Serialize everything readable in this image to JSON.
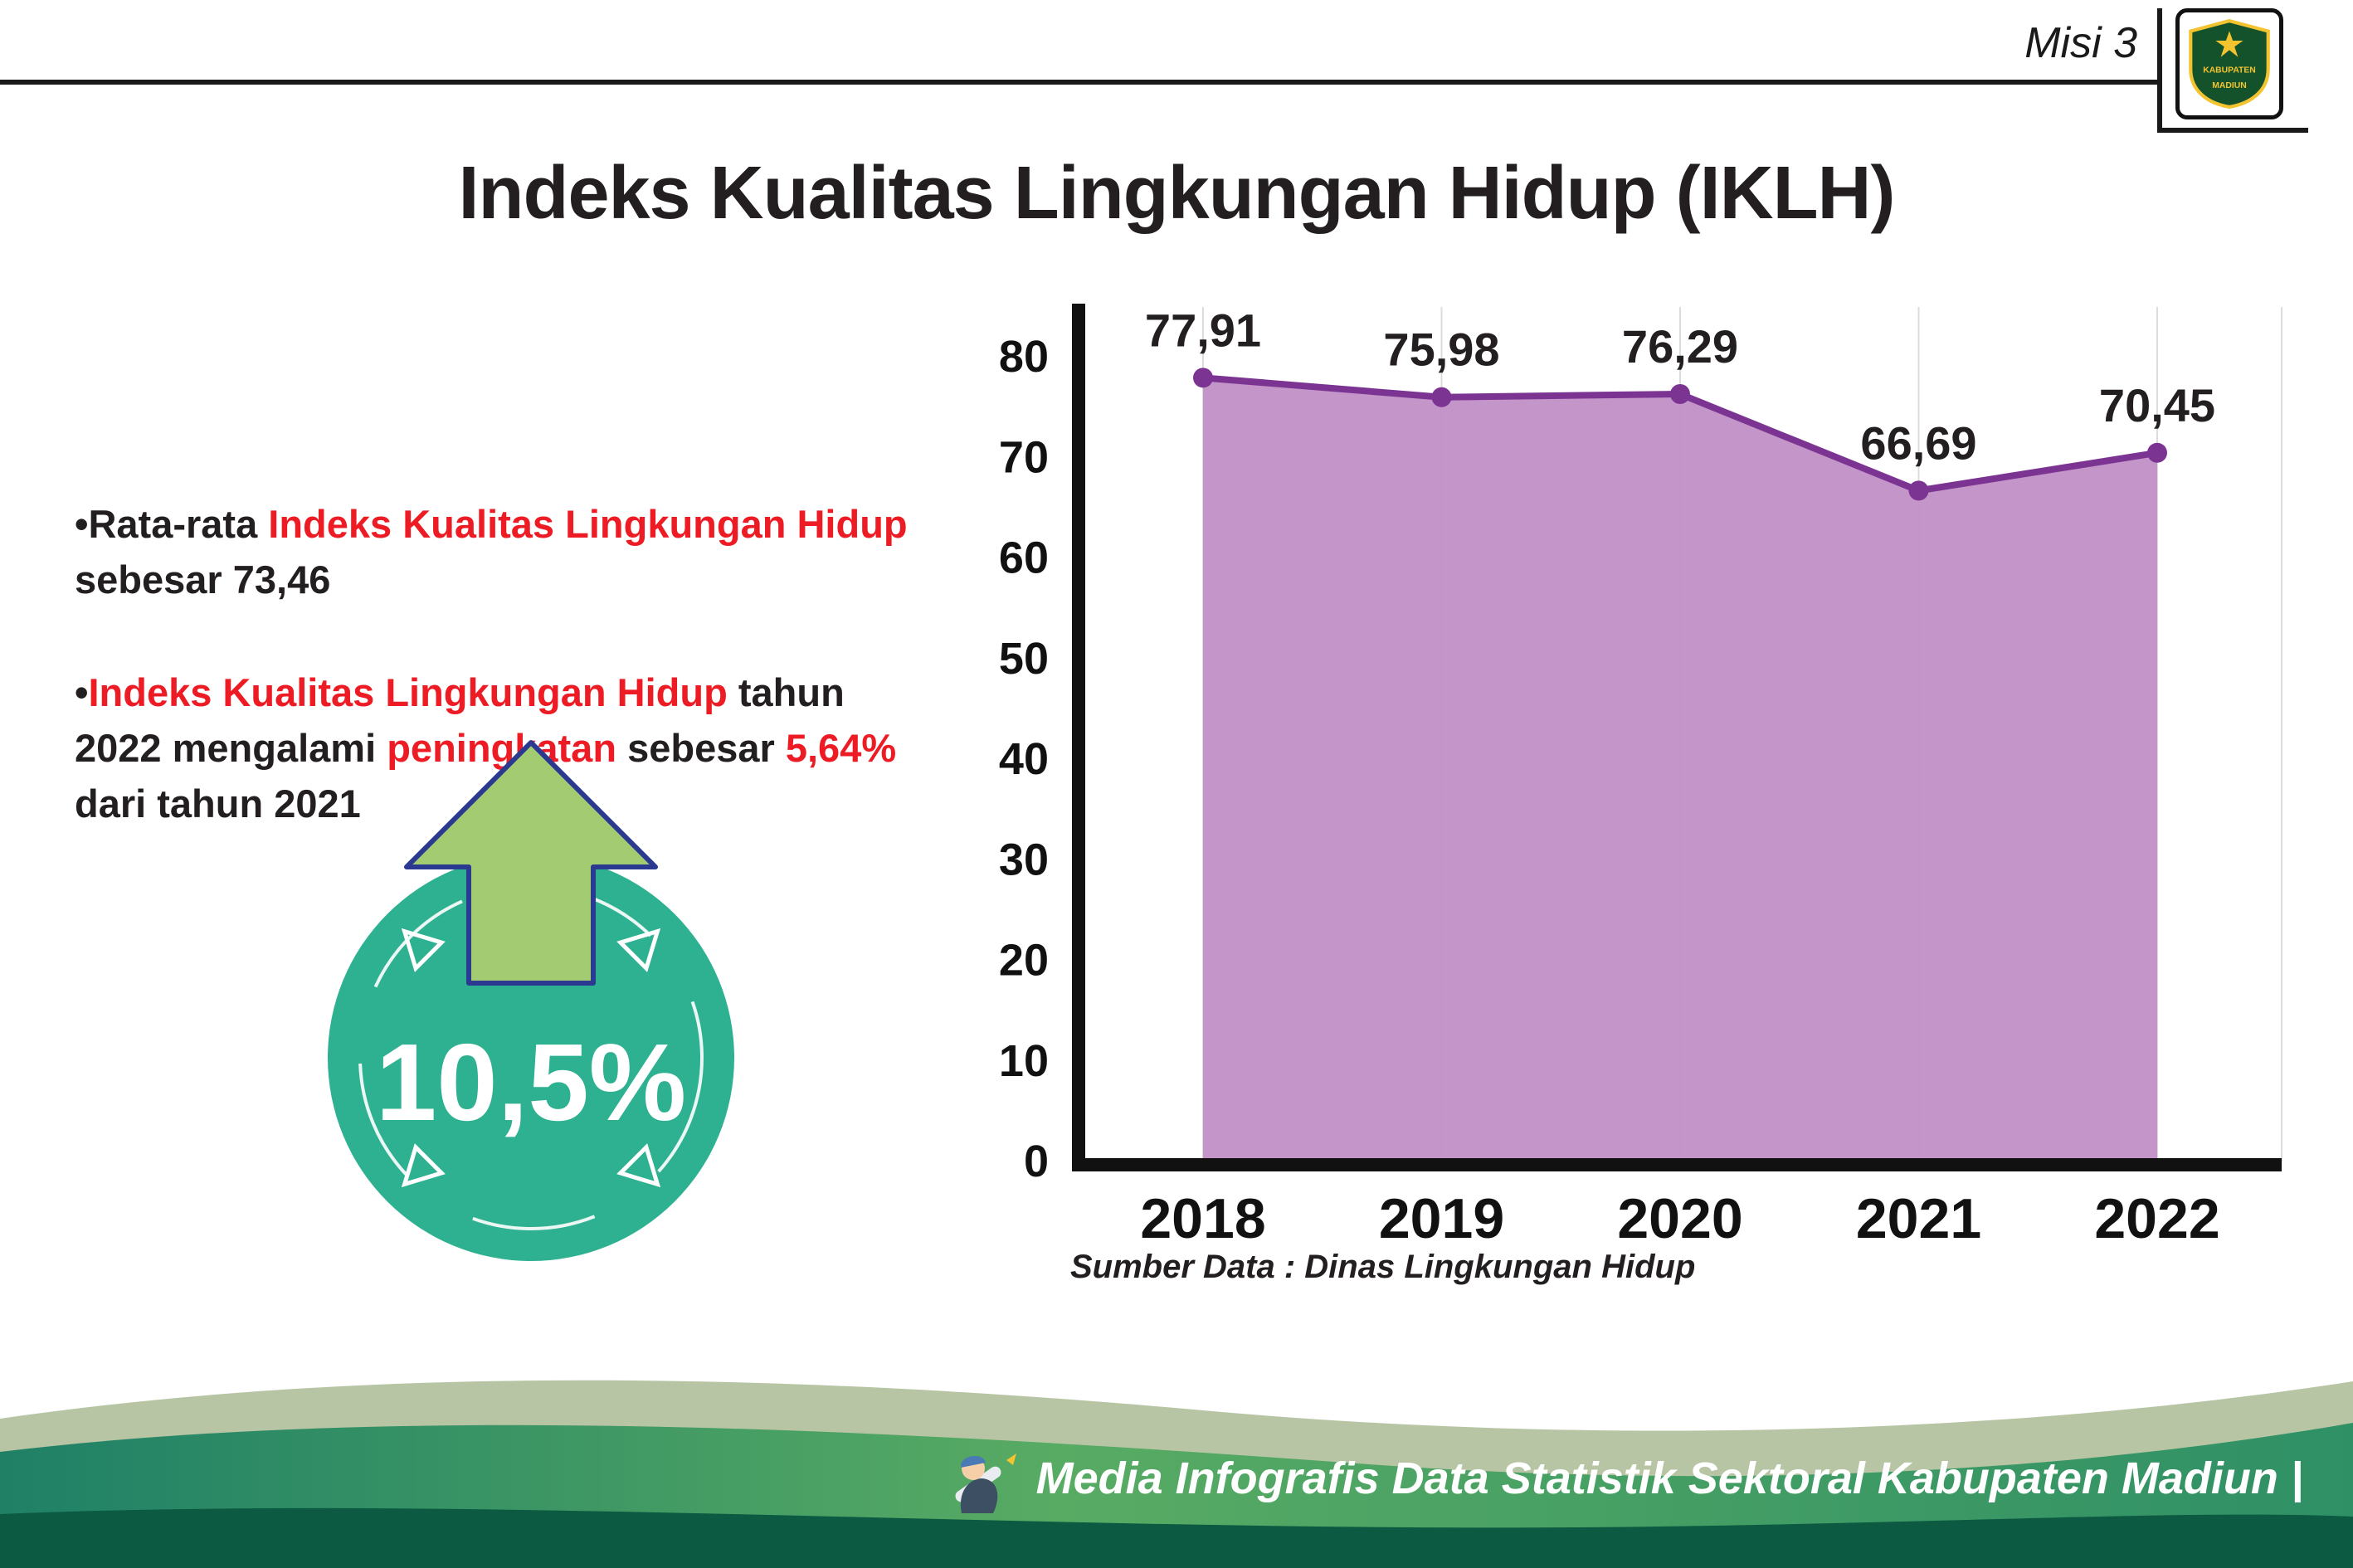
{
  "colors": {
    "accent_red": "#ed1c24",
    "badge_teal": "#2eb191",
    "arrow_green": "#a3cb72",
    "arrow_outline": "#2b3990",
    "chart_line": "#7c3492",
    "chart_fill": "#c18fc6",
    "footer_dark_green": "#0b5a41"
  },
  "header": {
    "misi_label": "Misi 3",
    "title": "Indeks Kualitas Lingkungan Hidup (IKLH)",
    "logo": {
      "top_text": "KABUPATEN",
      "bottom_text": "MADIUN"
    }
  },
  "bullets": [
    {
      "segments": [
        {
          "text": "•",
          "style": "dark"
        },
        {
          "text": "Rata-rata ",
          "style": "dark"
        },
        {
          "text": "Indeks Kualitas Lingkungan Hidup",
          "style": "red"
        },
        {
          "text": " sebesar 73,46",
          "style": "dark"
        }
      ]
    },
    {
      "segments": [
        {
          "text": "•",
          "style": "dark"
        },
        {
          "text": "Indeks Kualitas Lingkungan Hidup",
          "style": "red"
        },
        {
          "text": " tahun 2022 mengalami ",
          "style": "dark"
        },
        {
          "text": "peningkatan",
          "style": "red"
        },
        {
          "text": " sebesar ",
          "style": "dark"
        },
        {
          "text": "5,64%",
          "style": "red"
        },
        {
          "text": " dari tahun 2021",
          "style": "dark"
        }
      ]
    }
  ],
  "badge": {
    "value": "10,5%"
  },
  "chart_data": {
    "type": "area",
    "title": "Indeks Kualitas Lingkungan Hidup (IKLH)",
    "categories": [
      "2018",
      "2019",
      "2020",
      "2021",
      "2022"
    ],
    "values": [
      77.91,
      75.98,
      76.29,
      66.69,
      70.45
    ],
    "value_labels": [
      "77,91",
      "75,98",
      "76,29",
      "66,69",
      "70,45"
    ],
    "xlabel": "",
    "ylabel": "",
    "ylim": [
      0,
      80
    ],
    "ytick_step": 10,
    "grid": "vertical-light",
    "legend": "none",
    "line_color": "#7c3492",
    "fill_color": "#c18fc6",
    "point_color": "#7c3492",
    "source": "Sumber Data : Dinas Lingkungan Hidup"
  },
  "footer": {
    "credit": "Media Infografis Data Statistik Sektoral Kabupaten Madiun |"
  }
}
